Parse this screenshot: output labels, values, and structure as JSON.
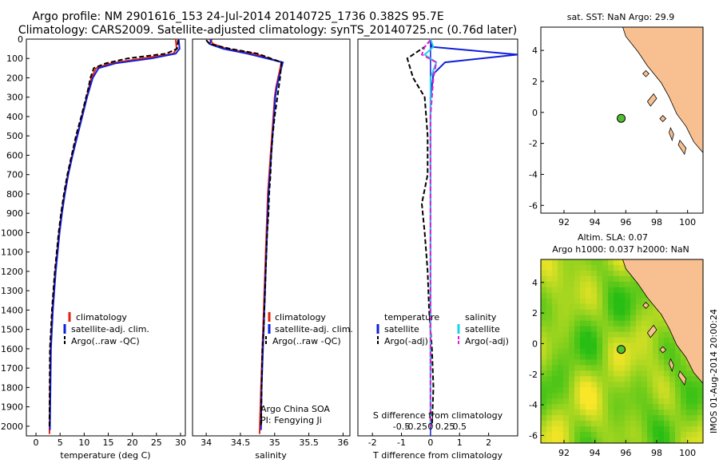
{
  "header": {
    "line1": "Argo profile: NM 2901616_153 24-Jul-2014 20140725_1736 0.382S 95.7E",
    "line2": "Climatology: CARS2009. Satellite-adjusted climatology: synTS_20140725.nc (0.76d later)"
  },
  "colors": {
    "climatology": "#e82010",
    "satellite": "#1020d8",
    "argo": "#000000",
    "s_satellite": "#20d0e8",
    "s_argo": "#e020d0",
    "land": "#f8c090",
    "sst_sea": "#ffffff"
  },
  "depth_axis": {
    "ylim": [
      0,
      2050
    ],
    "ticks": [
      0,
      100,
      200,
      300,
      400,
      500,
      600,
      700,
      800,
      900,
      1000,
      1100,
      1200,
      1300,
      1400,
      1500,
      1600,
      1700,
      1800,
      1900,
      2000
    ],
    "tick_labels": [
      "0",
      "100",
      "200",
      "300",
      "400",
      "500",
      "600",
      "700",
      "800",
      "900",
      "1000",
      "1100",
      "1200",
      "1300",
      "1400",
      "1500",
      "1600",
      "1700",
      "1800",
      "1900",
      "2000"
    ]
  },
  "temp_panel": {
    "xlabel": "temperature (deg C)",
    "xlim": [
      -2,
      31
    ],
    "xticks": [
      0,
      5,
      10,
      15,
      20,
      25,
      30
    ],
    "xtick_labels": [
      "0",
      "5",
      "10",
      "15",
      "20",
      "25",
      "30"
    ],
    "legend": [
      "climatology",
      "satellite-adj. clim.",
      "Argo(..raw -QC)"
    ]
  },
  "sal_panel": {
    "xlabel": "salinity",
    "xlim": [
      33.8,
      36.1
    ],
    "xticks": [
      34,
      34.5,
      35,
      35.5,
      36
    ],
    "xtick_labels": [
      "34",
      "34.5",
      "35",
      "35.5",
      "36"
    ],
    "legend": [
      "climatology",
      "satellite-adj. clim.",
      "Argo(..raw -QC)"
    ],
    "annotation1": "Argo China SOA",
    "annotation2": "PI: Fengying Ji"
  },
  "diff_panel": {
    "xlabel": "T difference from climatology",
    "xlabel_top": "S difference from climatology",
    "xlim": [
      -2.5,
      3
    ],
    "xticks": [
      -2,
      -1,
      0,
      1,
      2
    ],
    "xtick_labels": [
      "-2",
      "-1",
      "0",
      "1",
      "2"
    ],
    "s_ticks": [
      -0.5,
      -0.25,
      0,
      0.25,
      0.5
    ],
    "s_tick_labels": [
      "-0.5",
      "-0.25",
      "0",
      "0.25",
      "0.5"
    ],
    "legend_t_title": "temperature",
    "legend_s_title": "salinity",
    "legend_t": [
      "satellite",
      "Argo(-adj)"
    ],
    "legend_s": [
      "satellite",
      "Argo(-adj)"
    ]
  },
  "map_sst": {
    "title": "sat. SST: NaN Argo: 29.9",
    "xlim": [
      90.5,
      101
    ],
    "ylim": [
      -6.5,
      5.5
    ],
    "xticks": [
      92,
      94,
      96,
      98,
      100
    ],
    "xtick_labels": [
      "92",
      "94",
      "96",
      "98",
      "100"
    ],
    "yticks": [
      -6,
      -4,
      -2,
      0,
      2,
      4
    ],
    "ytick_labels": [
      "-6",
      "-4",
      "-2",
      "0",
      "2",
      "4"
    ],
    "float_lon": 95.7,
    "float_lat": -0.382
  },
  "map_sla": {
    "title1": "Altim. SLA: 0.07",
    "title2": "Argo h1000: 0.037 h2000: NaN",
    "xlim": [
      90.5,
      101
    ],
    "ylim": [
      -6.5,
      5.5
    ],
    "xticks": [
      92,
      94,
      96,
      98,
      100
    ],
    "xtick_labels": [
      "92",
      "94",
      "96",
      "98",
      "100"
    ],
    "yticks": [
      -6,
      -4,
      -2,
      0,
      2,
      4
    ],
    "ytick_labels": [
      "-6",
      "-4",
      "-2",
      "0",
      "2",
      "4"
    ],
    "float_lon": 95.7,
    "float_lat": -0.382
  },
  "watermark": "IMOS 01-Aug-2014 20:00:24",
  "chart_data": [
    {
      "type": "line",
      "panel": "temperature",
      "series": [
        {
          "name": "climatology",
          "x": [
            29.0,
            29.2,
            28.5,
            22.0,
            15.5,
            12.5,
            11.5,
            11.0,
            10.5,
            9.5,
            8.5,
            7.5,
            6.6,
            5.9,
            5.3,
            4.8,
            4.4,
            4.0,
            3.7,
            3.4,
            3.2,
            3.0,
            2.8
          ],
          "y": [
            0,
            50,
            75,
            100,
            125,
            150,
            200,
            250,
            300,
            400,
            500,
            600,
            700,
            800,
            900,
            1000,
            1100,
            1200,
            1300,
            1400,
            1500,
            1600,
            2040
          ]
        },
        {
          "name": "satellite-adj. clim.",
          "x": [
            29.6,
            29.8,
            29.0,
            24.0,
            16.5,
            13.0,
            11.8,
            11.2,
            10.6,
            9.6,
            8.6,
            7.6,
            6.7,
            6.0,
            5.4,
            4.9,
            4.5,
            4.1,
            3.8,
            3.5,
            3.3,
            3.1,
            2.9
          ],
          "y": [
            0,
            50,
            75,
            100,
            125,
            150,
            200,
            250,
            300,
            400,
            500,
            600,
            700,
            800,
            900,
            1000,
            1100,
            1200,
            1300,
            1400,
            1500,
            1600,
            2020
          ]
        },
        {
          "name": "Argo(..raw -QC)",
          "x": [
            29.5,
            29.3,
            27.0,
            19.0,
            14.5,
            12.0,
            11.3,
            10.9,
            10.4,
            9.4,
            8.3,
            7.4,
            6.5,
            5.8,
            5.2,
            4.7,
            4.3,
            3.9,
            3.6,
            3.3,
            3.1,
            2.9,
            2.8
          ],
          "y": [
            5,
            50,
            75,
            100,
            125,
            150,
            200,
            250,
            300,
            400,
            500,
            600,
            700,
            800,
            900,
            1000,
            1100,
            1200,
            1300,
            1400,
            1500,
            1600,
            2000
          ]
        }
      ]
    },
    {
      "type": "line",
      "panel": "salinity",
      "series": [
        {
          "name": "climatology",
          "x": [
            34.05,
            34.1,
            34.3,
            34.7,
            35.1,
            35.05,
            35.02,
            35.0,
            34.98,
            34.96,
            34.94,
            34.92,
            34.9,
            34.89,
            34.88,
            34.87,
            34.86,
            34.85,
            34.84,
            34.83,
            34.82,
            34.8,
            34.78
          ],
          "y": [
            0,
            25,
            50,
            75,
            120,
            200,
            250,
            300,
            400,
            500,
            600,
            700,
            800,
            900,
            1000,
            1100,
            1200,
            1300,
            1400,
            1500,
            1600,
            1800,
            2040
          ]
        },
        {
          "name": "satellite-adj. clim.",
          "x": [
            34.08,
            34.05,
            34.25,
            34.6,
            35.12,
            35.06,
            35.03,
            35.01,
            34.99,
            34.97,
            34.95,
            34.93,
            34.91,
            34.9,
            34.89,
            34.88,
            34.87,
            34.86,
            34.85,
            34.84,
            34.83,
            34.81,
            34.8
          ],
          "y": [
            0,
            25,
            50,
            75,
            120,
            200,
            250,
            300,
            400,
            500,
            600,
            700,
            800,
            900,
            1000,
            1100,
            1200,
            1300,
            1400,
            1500,
            1600,
            1800,
            2020
          ]
        },
        {
          "name": "Argo(..raw -QC)",
          "x": [
            34.0,
            34.05,
            34.35,
            34.75,
            35.1,
            35.08,
            35.06,
            35.04,
            35.0,
            34.97,
            34.95,
            34.94,
            34.92,
            34.91,
            34.89,
            34.88,
            34.87,
            34.86,
            34.85,
            34.84,
            34.82,
            34.81,
            34.8
          ],
          "y": [
            5,
            25,
            50,
            75,
            120,
            200,
            250,
            300,
            400,
            500,
            600,
            700,
            800,
            900,
            1000,
            1100,
            1200,
            1300,
            1400,
            1500,
            1600,
            1800,
            2000
          ]
        }
      ]
    },
    {
      "type": "line",
      "panel": "difference",
      "series": [
        {
          "name": "temperature satellite",
          "x": [
            0,
            0.05,
            1.5,
            3.0,
            0.5,
            0.1,
            0.05,
            0,
            0,
            0,
            0,
            0,
            0,
            0,
            0,
            0
          ],
          "y": [
            0,
            40,
            60,
            80,
            120,
            180,
            240,
            300,
            500,
            700,
            900,
            1100,
            1300,
            1500,
            1700,
            2000
          ]
        },
        {
          "name": "temperature Argo(-adj)",
          "x": [
            0,
            -0.2,
            -0.8,
            -0.6,
            -0.2,
            -0.1,
            -0.1,
            -0.3,
            -0.2,
            -0.1,
            -0.05,
            0.05,
            0.1,
            0.05
          ],
          "y": [
            5,
            40,
            100,
            200,
            300,
            500,
            700,
            850,
            1000,
            1200,
            1400,
            1600,
            1800,
            2000
          ]
        },
        {
          "name": "salinity satellite",
          "x": [
            0,
            0.05,
            -0.1,
            0.1,
            0,
            0,
            0,
            0,
            0,
            0
          ],
          "y": [
            0,
            40,
            80,
            120,
            200,
            400,
            800,
            1200,
            1600,
            2000
          ]
        },
        {
          "name": "salinity Argo(-adj)",
          "x": [
            0,
            -0.1,
            -0.15,
            0.1,
            0.05,
            0,
            0,
            0
          ],
          "y": [
            5,
            40,
            80,
            120,
            200,
            400,
            1000,
            2000
          ]
        }
      ]
    }
  ]
}
